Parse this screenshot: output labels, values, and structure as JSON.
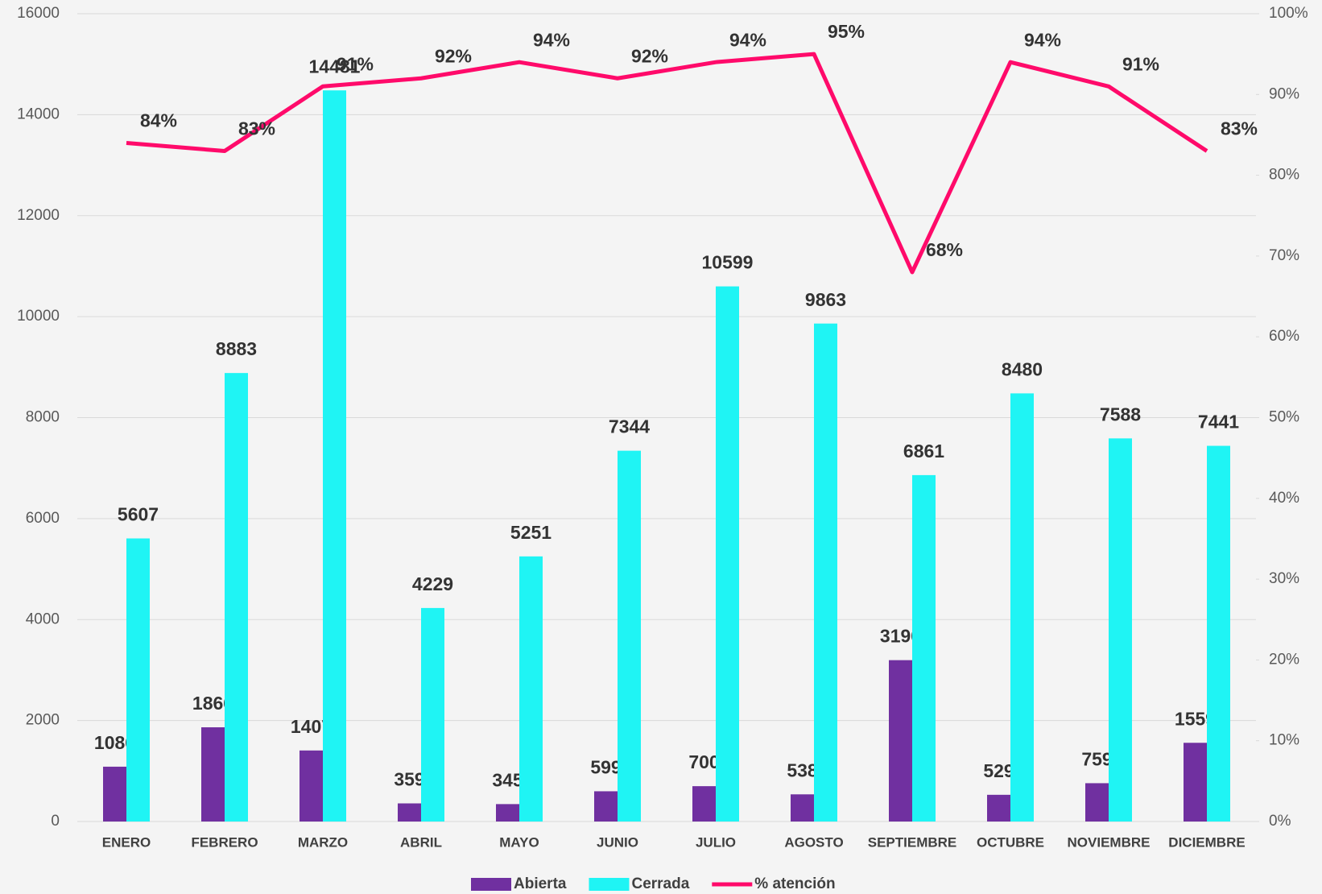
{
  "chart_data": {
    "type": "bar",
    "categories": [
      "ENERO",
      "FEBRERO",
      "MARZO",
      "ABRIL",
      "MAYO",
      "JUNIO",
      "JULIO",
      "AGOSTO",
      "SEPTIEMBRE",
      "OCTUBRE",
      "NOVIEMBRE",
      "DICIEMBRE"
    ],
    "series": [
      {
        "name": "Abierta",
        "color": "#7030a0",
        "values": [
          1086,
          1866,
          1407,
          359,
          345,
          599,
          700,
          538,
          3196,
          529,
          759,
          1559
        ]
      },
      {
        "name": "Cerrada",
        "color": "#1ff4f4",
        "values": [
          5607,
          8883,
          14481,
          4229,
          5251,
          7344,
          10599,
          9863,
          6861,
          8480,
          7588,
          7441
        ]
      },
      {
        "name": "% atención",
        "color": "#ff0a6a",
        "type": "line",
        "axis": "y2",
        "values": [
          84,
          83,
          91,
          92,
          94,
          92,
          94,
          95,
          68,
          94,
          91,
          83
        ],
        "value_labels": [
          "84%",
          "83%",
          "91%",
          "92%",
          "94%",
          "92%",
          "94%",
          "95%",
          "68%",
          "94%",
          "91%",
          "83%"
        ]
      }
    ],
    "ylim": [
      0,
      16000
    ],
    "yticks": [
      0,
      2000,
      4000,
      6000,
      8000,
      10000,
      12000,
      14000,
      16000
    ],
    "y2lim": [
      0,
      100
    ],
    "y2ticks": [
      {
        "value": 0,
        "label": "0%"
      },
      {
        "value": 10,
        "label": "10%"
      },
      {
        "value": 20,
        "label": "20%"
      },
      {
        "value": 30,
        "label": "30%"
      },
      {
        "value": 40,
        "label": "40%"
      },
      {
        "value": 50,
        "label": "50%"
      },
      {
        "value": 60,
        "label": "60%"
      },
      {
        "value": 70,
        "label": "70%"
      },
      {
        "value": 80,
        "label": "80%"
      },
      {
        "value": 90,
        "label": "90%"
      },
      {
        "value": 100,
        "label": "100%"
      }
    ],
    "grid": true,
    "legend": "bottom"
  }
}
